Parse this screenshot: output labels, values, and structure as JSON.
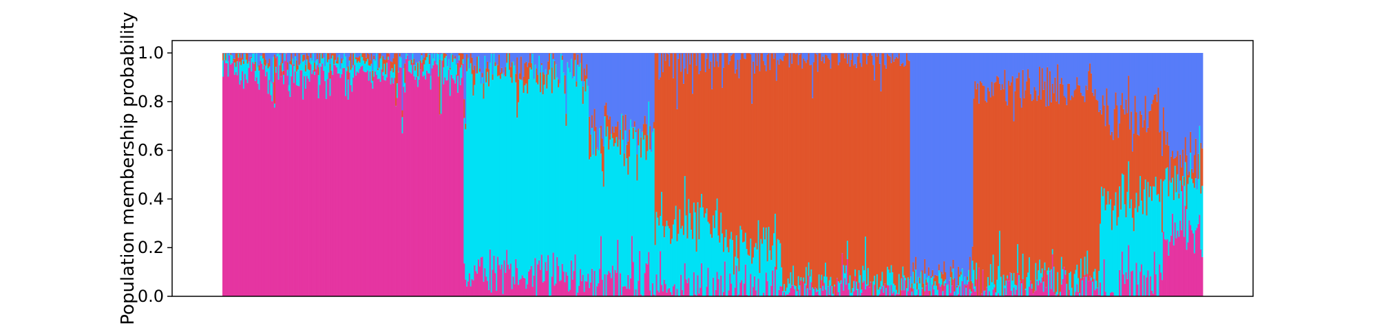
{
  "chart_data": {
    "type": "bar",
    "subtype": "stacked-structure-plot",
    "title": "",
    "xlabel": "",
    "ylabel": "Population membership probability",
    "ylim": [
      0.0,
      1.0
    ],
    "yticks": [
      "0.0",
      "0.2",
      "0.4",
      "0.6",
      "0.8",
      "1.0"
    ],
    "xticks": [],
    "grid": false,
    "legend": "none",
    "n_individuals": 760,
    "clusters": [
      {
        "color": "#e535a1"
      },
      {
        "color": "#00e1f5"
      },
      {
        "color": "#e1552b"
      },
      {
        "color": "#577cf9"
      }
    ],
    "groups": [
      {
        "count": 187,
        "membership": [
          0.93,
          0.05,
          0.01,
          0.01
        ],
        "noise": 0.05
      },
      {
        "count": 97,
        "membership": [
          0.1,
          0.82,
          0.02,
          0.06
        ],
        "noise": 0.08
      },
      {
        "count": 51,
        "membership": [
          0.06,
          0.57,
          0.04,
          0.33
        ],
        "noise": 0.12
      },
      {
        "count": 50,
        "membership": [
          0.02,
          0.28,
          0.68,
          0.02
        ],
        "noise": 0.12
      },
      {
        "count": 48,
        "membership": [
          0.02,
          0.2,
          0.76,
          0.02
        ],
        "noise": 0.1
      },
      {
        "count": 100,
        "membership": [
          0.02,
          0.04,
          0.92,
          0.02
        ],
        "noise": 0.05
      },
      {
        "count": 49,
        "membership": [
          0.02,
          0.04,
          0.03,
          0.91
        ],
        "noise": 0.05
      },
      {
        "count": 98,
        "membership": [
          0.03,
          0.04,
          0.78,
          0.15
        ],
        "noise": 0.08
      },
      {
        "count": 50,
        "membership": [
          0.04,
          0.35,
          0.35,
          0.26
        ],
        "noise": 0.15
      },
      {
        "count": 30,
        "membership": [
          0.26,
          0.2,
          0.1,
          0.44
        ],
        "noise": 0.12
      }
    ]
  }
}
